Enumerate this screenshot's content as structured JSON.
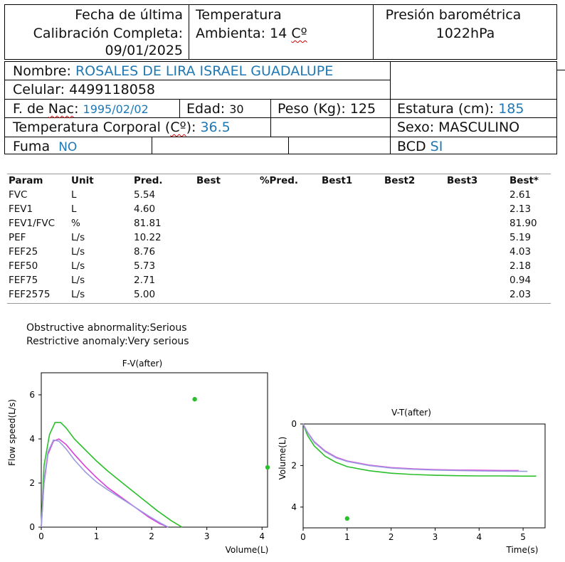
{
  "header": {
    "calibration": {
      "line1": "Fecha de última",
      "line2": "Calibración Completa:",
      "date": "09/01/2025"
    },
    "ambient": {
      "line1": "Temperatura",
      "line2_prefix": "Ambienta: 14 ",
      "unit": "Cº"
    },
    "pressure": {
      "line1": "Presión barométrica",
      "value": "1022hPa"
    }
  },
  "patient": {
    "name_label": "Nombre:",
    "name": "ROSALES DE LIRA ISRAEL GUADALUPE",
    "phone_label": "Celular:",
    "phone": "4499118058",
    "dob_label_pre": "F. de ",
    "dob_label_word": "Nac",
    "dob_label_post": ":",
    "dob": "1995/02/02",
    "age_label": "Edad:",
    "age": "30",
    "weight_label": "Peso (Kg): 125",
    "height_label": "Estatura (cm):",
    "height": "185",
    "temp_label_pre": "Temperatura Corporal (",
    "temp_label_unit": "Cº",
    "temp_label_post": "):",
    "temp": "36.5",
    "sex_label": "Sexo: MASCULINO",
    "smoke_label": "Fuma",
    "smoke": "NO",
    "bcd_label": "BCD",
    "bcd": "SI"
  },
  "params": {
    "headers": [
      "Param",
      "Unit",
      "Pred.",
      "Best",
      "%Pred.",
      "Best1",
      "Best2",
      "Best3",
      "Best*"
    ],
    "rows": [
      {
        "param": "FVC",
        "unit": "L",
        "pred": "5.54",
        "best_star": "2.61"
      },
      {
        "param": "FEV1",
        "unit": "L",
        "pred": "4.60",
        "best_star": "2.13"
      },
      {
        "param": "FEV1/FVC",
        "unit": "%",
        "pred": "81.81",
        "best_star": "81.90"
      },
      {
        "param": "PEF",
        "unit": "L/s",
        "pred": "10.22",
        "best_star": "5.19"
      },
      {
        "param": "FEF25",
        "unit": "L/s",
        "pred": "8.76",
        "best_star": "4.03"
      },
      {
        "param": "FEF50",
        "unit": "L/s",
        "pred": "5.73",
        "best_star": "2.18"
      },
      {
        "param": "FEF75",
        "unit": "L/s",
        "pred": "2.71",
        "best_star": "0.94"
      },
      {
        "param": "FEF2575",
        "unit": "L/s",
        "pred": "5.00",
        "best_star": "2.03"
      }
    ]
  },
  "diagnosis": {
    "line1": "Obstructive abnormality:Serious",
    "line2": "Restrictive anomaly:Very serious"
  },
  "colors": {
    "green": "#2bbf2b",
    "magenta": "#d93fd9",
    "lavender": "#9b9be0",
    "label_blue": "#1f78b4"
  },
  "fv_chart": {
    "title": "F-V(after)",
    "xlabel": "Volume(L)",
    "ylabel": "Flow speed(L/s)",
    "xticks": [
      "0",
      "1",
      "2",
      "3",
      "4"
    ],
    "yticks": [
      "0",
      "2",
      "4",
      "6"
    ]
  },
  "vt_chart": {
    "title": "V-T(after)",
    "xlabel": "Time(s)",
    "ylabel": "Volume(L)",
    "xticks": [
      "0",
      "1",
      "2",
      "3",
      "4",
      "5"
    ],
    "yticks": [
      "0",
      "2",
      "4"
    ]
  },
  "chart_data": [
    {
      "type": "line",
      "title": "F-V(after)",
      "xlabel": "Volume(L)",
      "ylabel": "Flow speed(L/s)",
      "xlim": [
        0,
        4.1
      ],
      "ylim": [
        0,
        7
      ],
      "series": [
        {
          "color": "#2bbf2b",
          "x": [
            0,
            0.05,
            0.15,
            0.25,
            0.35,
            0.45,
            0.6,
            0.8,
            1.0,
            1.2,
            1.5,
            1.8,
            2.1,
            2.35,
            2.55
          ],
          "y": [
            0,
            2.8,
            4.2,
            4.75,
            4.75,
            4.5,
            4.0,
            3.5,
            3.0,
            2.55,
            1.95,
            1.35,
            0.75,
            0.3,
            0
          ]
        },
        {
          "color": "#d93fd9",
          "x": [
            0,
            0.05,
            0.12,
            0.22,
            0.32,
            0.45,
            0.6,
            0.8,
            1.0,
            1.2,
            1.45,
            1.7,
            1.95,
            2.15,
            2.3
          ],
          "y": [
            0,
            2.0,
            3.3,
            3.9,
            4.0,
            3.75,
            3.3,
            2.75,
            2.25,
            1.8,
            1.35,
            0.9,
            0.45,
            0.15,
            0
          ]
        },
        {
          "color": "#9b9be0",
          "x": [
            0,
            0.05,
            0.12,
            0.22,
            0.32,
            0.45,
            0.6,
            0.8,
            1.0,
            1.2,
            1.45,
            1.7,
            1.95,
            2.15,
            2.3
          ],
          "y": [
            0,
            2.1,
            3.4,
            3.95,
            3.9,
            3.55,
            3.05,
            2.5,
            2.05,
            1.7,
            1.3,
            0.9,
            0.5,
            0.2,
            0
          ]
        }
      ],
      "points": [
        {
          "color": "#2bbf2b",
          "x": 2.78,
          "y": 5.8
        },
        {
          "color": "#2bbf2b",
          "x": 4.1,
          "y": 2.71
        }
      ]
    },
    {
      "type": "line",
      "title": "V-T(after)",
      "xlabel": "Time(s)",
      "ylabel": "Volume(L)",
      "xlim": [
        0,
        5.5
      ],
      "ylim": [
        0,
        5
      ],
      "y_inverted": true,
      "series": [
        {
          "color": "#2bbf2b",
          "x": [
            0,
            0.1,
            0.25,
            0.5,
            0.75,
            1.0,
            1.5,
            2.0,
            2.5,
            3.0,
            3.5,
            4.0,
            4.5,
            5.0,
            5.3
          ],
          "y": [
            0,
            0.55,
            1.05,
            1.55,
            1.85,
            2.05,
            2.25,
            2.37,
            2.43,
            2.47,
            2.49,
            2.5,
            2.5,
            2.51,
            2.51
          ]
        },
        {
          "color": "#d93fd9",
          "x": [
            0,
            0.1,
            0.25,
            0.5,
            0.75,
            1.0,
            1.5,
            2.0,
            2.5,
            3.0,
            3.5,
            4.0,
            4.5,
            4.9
          ],
          "y": [
            0,
            0.4,
            0.85,
            1.3,
            1.6,
            1.78,
            1.98,
            2.1,
            2.16,
            2.2,
            2.22,
            2.23,
            2.24,
            2.24
          ]
        },
        {
          "color": "#9b9be0",
          "x": [
            0,
            0.1,
            0.25,
            0.5,
            0.75,
            1.0,
            1.5,
            2.0,
            2.5,
            3.0,
            3.5,
            4.0,
            4.5,
            5.1
          ],
          "y": [
            0,
            0.42,
            0.88,
            1.33,
            1.63,
            1.8,
            2.0,
            2.12,
            2.18,
            2.22,
            2.24,
            2.26,
            2.27,
            2.28
          ]
        }
      ],
      "points": [
        {
          "color": "#2bbf2b",
          "x": 1.0,
          "y": 4.55
        }
      ]
    }
  ]
}
